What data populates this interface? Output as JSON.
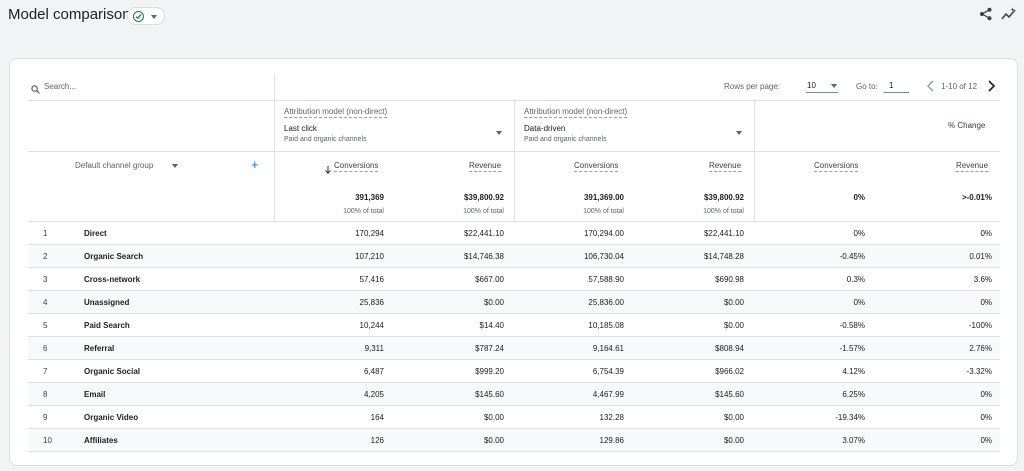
{
  "header": {
    "title": "Model comparison",
    "status_icon": "check-circle-icon",
    "actions": [
      "share-icon",
      "insights-icon"
    ]
  },
  "toolbar": {
    "search_placeholder": "Search...",
    "rows_per_page_label": "Rows per page:",
    "rows_per_page_value": "10",
    "goto_label": "Go to:",
    "goto_value": "1",
    "range_text": "1-10 of 12"
  },
  "models": [
    {
      "title": "Attribution model (non-direct)",
      "name": "Last click",
      "sub": "Paid and organic channels"
    },
    {
      "title": "Attribution model (non-direct)",
      "name": "Data-driven",
      "sub": "Paid and organic channels"
    }
  ],
  "change_header": "% Change",
  "dimension_label": "Default channel group",
  "metrics": {
    "conversions": "Conversions",
    "revenue": "Revenue"
  },
  "sort_icon": "arrow-down-icon",
  "totals": {
    "m1_conversions": "391,369",
    "m1_revenue": "$39,800.92",
    "m2_conversions": "391,369.00",
    "m2_revenue": "$39,800.92",
    "chg_conversions": "0%",
    "chg_revenue": ">-0.01%",
    "sub_label": "100% of total"
  },
  "rows": [
    {
      "idx": "1",
      "name": "Direct",
      "m1c": "170,294",
      "m1r": "$22,441.10",
      "m2c": "170,294.00",
      "m2r": "$22,441.10",
      "cc": "0%",
      "cr": "0%"
    },
    {
      "idx": "2",
      "name": "Organic Search",
      "m1c": "107,210",
      "m1r": "$14,746.38",
      "m2c": "106,730.04",
      "m2r": "$14,748.28",
      "cc": "-0.45%",
      "cr": "0.01%"
    },
    {
      "idx": "3",
      "name": "Cross-network",
      "m1c": "57,416",
      "m1r": "$667.00",
      "m2c": "57,588.90",
      "m2r": "$690.98",
      "cc": "0.3%",
      "cr": "3.6%"
    },
    {
      "idx": "4",
      "name": "Unassigned",
      "m1c": "25,836",
      "m1r": "$0.00",
      "m2c": "25,836.00",
      "m2r": "$0.00",
      "cc": "0%",
      "cr": "0%"
    },
    {
      "idx": "5",
      "name": "Paid Search",
      "m1c": "10,244",
      "m1r": "$14.40",
      "m2c": "10,185.08",
      "m2r": "$0.00",
      "cc": "-0.58%",
      "cr": "-100%"
    },
    {
      "idx": "6",
      "name": "Referral",
      "m1c": "9,311",
      "m1r": "$787.24",
      "m2c": "9,164.61",
      "m2r": "$808.94",
      "cc": "-1.57%",
      "cr": "2.76%"
    },
    {
      "idx": "7",
      "name": "Organic Social",
      "m1c": "6,487",
      "m1r": "$999.20",
      "m2c": "6,754.39",
      "m2r": "$966.02",
      "cc": "4.12%",
      "cr": "-3.32%"
    },
    {
      "idx": "8",
      "name": "Email",
      "m1c": "4,205",
      "m1r": "$145.60",
      "m2c": "4,467.99",
      "m2r": "$145.60",
      "cc": "6.25%",
      "cr": "0%"
    },
    {
      "idx": "9",
      "name": "Organic Video",
      "m1c": "164",
      "m1r": "$0.00",
      "m2c": "132.28",
      "m2r": "$0.00",
      "cc": "-19.34%",
      "cr": "0%"
    },
    {
      "idx": "10",
      "name": "Affiliates",
      "m1c": "126",
      "m1r": "$0.00",
      "m2c": "129.86",
      "m2r": "$0.00",
      "cc": "3.07%",
      "cr": "0%"
    }
  ],
  "colors": {
    "accent": "#1a73e8",
    "success": "#188038",
    "border": "#e0e0e0",
    "background": "#f1f3f4"
  }
}
